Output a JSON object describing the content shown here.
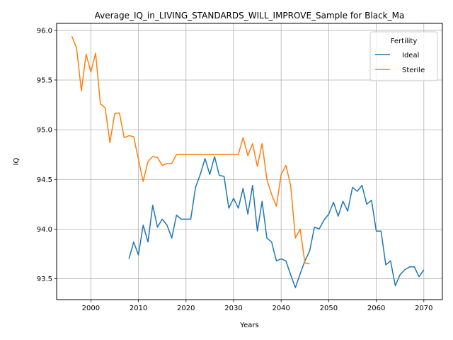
{
  "chart_data": {
    "type": "line",
    "title": "Average_IQ_in_LIVING_STANDARDS_WILL_IMPROVE_Sample for Black_Ma",
    "xlabel": "Years",
    "ylabel": "IQ",
    "xlim": [
      1992.8,
      2073.9
    ],
    "ylim": [
      93.29,
      96.07
    ],
    "xticks": [
      "2000",
      "2010",
      "2020",
      "2030",
      "2040",
      "2050",
      "2060",
      "2070"
    ],
    "yticks": [
      "93.5",
      "94.0",
      "94.5",
      "95.0",
      "95.5",
      "96.0"
    ],
    "grid": true,
    "legend": {
      "title": "Fertility",
      "placement": "top-right"
    },
    "series": [
      {
        "name": "Ideal",
        "color": "#1f77b4",
        "x": [
          2008,
          2009,
          2010,
          2011,
          2012,
          2013,
          2014,
          2015,
          2016,
          2017,
          2018,
          2019,
          2020,
          2021,
          2022,
          2023,
          2024,
          2025,
          2026,
          2027,
          2028,
          2029,
          2030,
          2031,
          2032,
          2033,
          2034,
          2035,
          2036,
          2037,
          2038,
          2039,
          2040,
          2041,
          2042,
          2043,
          2044,
          2045,
          2046,
          2047,
          2048,
          2049,
          2050,
          2051,
          2052,
          2053,
          2054,
          2055,
          2056,
          2057,
          2058,
          2059,
          2060,
          2061,
          2062,
          2063,
          2064,
          2065,
          2066,
          2067,
          2068,
          2069,
          2070
        ],
        "y": [
          93.7,
          93.87,
          93.74,
          94.04,
          93.87,
          94.24,
          94.02,
          94.1,
          94.04,
          93.91,
          94.14,
          94.1,
          94.1,
          94.1,
          94.42,
          94.55,
          94.71,
          94.55,
          94.73,
          94.54,
          94.53,
          94.21,
          94.31,
          94.21,
          94.41,
          94.15,
          94.44,
          93.98,
          94.28,
          93.91,
          93.87,
          93.68,
          93.7,
          93.68,
          93.54,
          93.41,
          93.55,
          93.68,
          93.78,
          94.02,
          94.0,
          94.09,
          94.15,
          94.27,
          94.13,
          94.28,
          94.18,
          94.42,
          94.38,
          94.44,
          94.25,
          94.29,
          93.98,
          93.98,
          93.64,
          93.68,
          93.43,
          93.54,
          93.59,
          93.62,
          93.62,
          93.52,
          93.59
        ]
      },
      {
        "name": "Sterile",
        "color": "#ff7f0e",
        "x": [
          1996,
          1997,
          1998,
          1999,
          2000,
          2001,
          2002,
          2003,
          2004,
          2005,
          2006,
          2007,
          2008,
          2009,
          2010,
          2011,
          2012,
          2013,
          2014,
          2015,
          2016,
          2017,
          2018,
          2019,
          2020,
          2021,
          2022,
          2023,
          2024,
          2025,
          2026,
          2027,
          2028,
          2029,
          2030,
          2031,
          2032,
          2033,
          2034,
          2035,
          2036,
          2037,
          2038,
          2039,
          2040,
          2041,
          2042,
          2043,
          2044,
          2045,
          2046
        ],
        "y": [
          95.94,
          95.82,
          95.39,
          95.76,
          95.58,
          95.77,
          95.26,
          95.22,
          94.87,
          95.16,
          95.17,
          94.92,
          94.94,
          94.93,
          94.7,
          94.48,
          94.68,
          94.73,
          94.72,
          94.64,
          94.66,
          94.66,
          94.75,
          94.75,
          94.75,
          94.75,
          94.75,
          94.75,
          94.75,
          94.75,
          94.75,
          94.75,
          94.75,
          94.75,
          94.75,
          94.75,
          94.92,
          94.74,
          94.86,
          94.63,
          94.86,
          94.5,
          94.35,
          94.23,
          94.55,
          94.64,
          94.44,
          93.91,
          94.0,
          93.66,
          93.65
        ]
      }
    ]
  }
}
